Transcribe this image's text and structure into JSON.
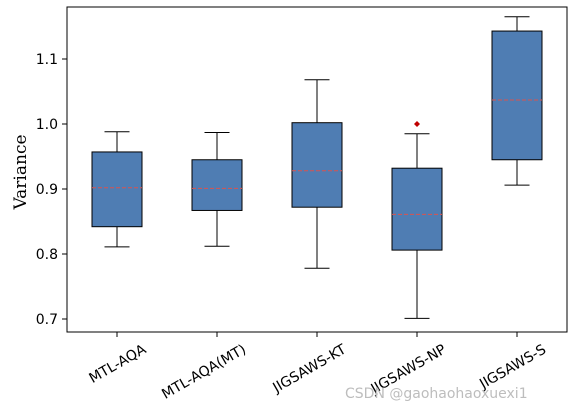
{
  "chart_data": {
    "type": "box",
    "title": "",
    "xlabel": "",
    "ylabel": "Variance",
    "ylim": [
      0.68,
      1.18
    ],
    "yticks": [
      0.7,
      0.8,
      0.9,
      1.0,
      1.1
    ],
    "ytick_labels": [
      "0.7",
      "0.8",
      "0.9",
      "1.0",
      "1.1"
    ],
    "grid": false,
    "box_color": "#4f7db3",
    "median_color": "#d9534f",
    "outlier_color": "#c00000",
    "categories": [
      "MTL-AQA",
      "MTL-AQA(MT)",
      "JIGSAWS-KT",
      "JIGSAWS-NP",
      "JIGSAWS-S"
    ],
    "boxes": [
      {
        "whisker_low": 0.811,
        "q1": 0.842,
        "median": 0.902,
        "q3": 0.957,
        "whisker_high": 0.988,
        "outliers": []
      },
      {
        "whisker_low": 0.812,
        "q1": 0.867,
        "median": 0.901,
        "q3": 0.945,
        "whisker_high": 0.987,
        "outliers": []
      },
      {
        "whisker_low": 0.778,
        "q1": 0.872,
        "median": 0.928,
        "q3": 1.002,
        "whisker_high": 1.068,
        "outliers": []
      },
      {
        "whisker_low": 0.701,
        "q1": 0.806,
        "median": 0.861,
        "q3": 0.932,
        "whisker_high": 0.985,
        "outliers": [
          1.0
        ]
      },
      {
        "whisker_low": 0.906,
        "q1": 0.945,
        "median": 1.037,
        "q3": 1.143,
        "whisker_high": 1.165,
        "outliers": []
      }
    ]
  },
  "watermark": "CSDN @gaohaohaoxuexi1"
}
